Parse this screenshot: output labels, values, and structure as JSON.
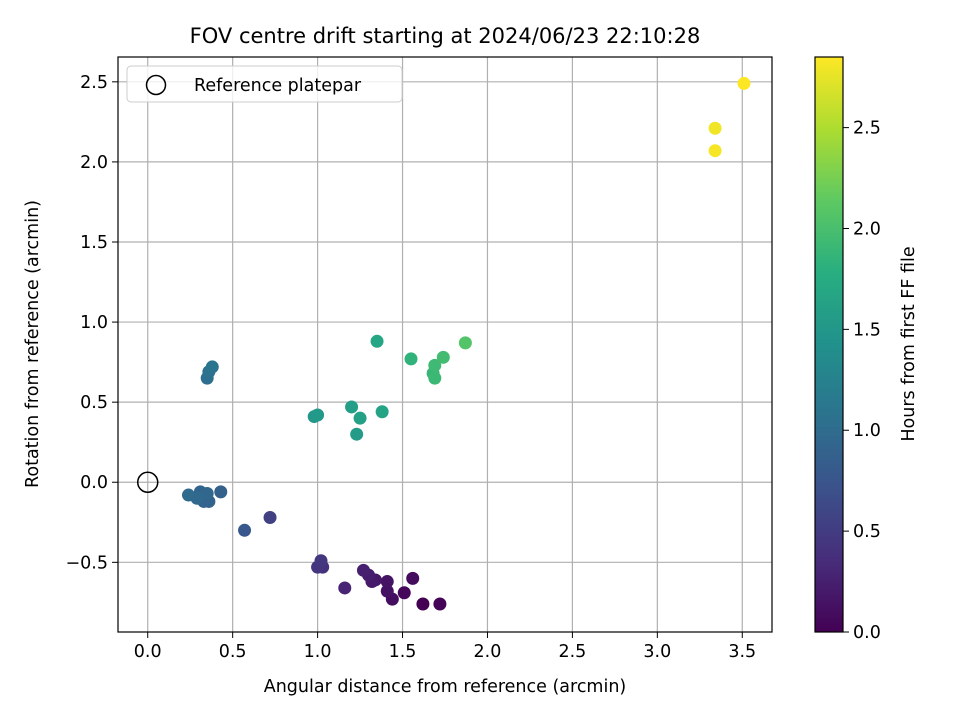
{
  "chart_data": {
    "type": "scatter",
    "title": "FOV centre drift starting at 2024/06/23 22:10:28",
    "xlabel": "Angular distance from reference (arcmin)",
    "ylabel": "Rotation from reference (arcmin)",
    "xlim": [
      -0.175,
      3.675
    ],
    "ylim": [
      -0.935,
      2.655
    ],
    "xticks": [
      0.0,
      0.5,
      1.0,
      1.5,
      2.0,
      2.5,
      3.0,
      3.5
    ],
    "xtick_labels": [
      "0.0",
      "0.5",
      "1.0",
      "1.5",
      "2.0",
      "2.5",
      "3.0",
      "3.5"
    ],
    "yticks": [
      -0.5,
      0.0,
      0.5,
      1.0,
      1.5,
      2.0,
      2.5
    ],
    "ytick_labels": [
      "−0.5",
      "0.0",
      "0.5",
      "1.0",
      "1.5",
      "2.0",
      "2.5"
    ],
    "grid": true,
    "legend": {
      "placement": "top-left",
      "entries": [
        {
          "label": "Reference platepar",
          "marker": "open-circle"
        }
      ]
    },
    "reference_point": {
      "x": 0.0,
      "y": 0.0
    },
    "colorbar": {
      "label": "Hours from first FF file",
      "range": [
        0.0,
        2.85
      ],
      "ticks": [
        0.0,
        0.5,
        1.0,
        1.5,
        2.0,
        2.5
      ],
      "tick_labels": [
        "0.0",
        "0.5",
        "1.0",
        "1.5",
        "2.0",
        "2.5"
      ],
      "colormap": "viridis"
    },
    "points": [
      {
        "x": 1.62,
        "y": -0.76,
        "c": 0.0
      },
      {
        "x": 1.72,
        "y": -0.76,
        "c": 0.02
      },
      {
        "x": 1.51,
        "y": -0.69,
        "c": 0.05
      },
      {
        "x": 1.56,
        "y": -0.6,
        "c": 0.08
      },
      {
        "x": 1.44,
        "y": -0.73,
        "c": 0.1
      },
      {
        "x": 1.41,
        "y": -0.68,
        "c": 0.13
      },
      {
        "x": 1.41,
        "y": -0.62,
        "c": 0.15
      },
      {
        "x": 1.34,
        "y": -0.61,
        "c": 0.18
      },
      {
        "x": 1.32,
        "y": -0.62,
        "c": 0.2
      },
      {
        "x": 1.3,
        "y": -0.58,
        "c": 0.23
      },
      {
        "x": 1.27,
        "y": -0.55,
        "c": 0.25
      },
      {
        "x": 1.16,
        "y": -0.66,
        "c": 0.3
      },
      {
        "x": 1.03,
        "y": -0.53,
        "c": 0.4
      },
      {
        "x": 1.0,
        "y": -0.53,
        "c": 0.43
      },
      {
        "x": 1.02,
        "y": -0.49,
        "c": 0.46
      },
      {
        "x": 0.72,
        "y": -0.22,
        "c": 0.55
      },
      {
        "x": 0.57,
        "y": -0.3,
        "c": 0.78
      },
      {
        "x": 0.43,
        "y": -0.06,
        "c": 0.88
      },
      {
        "x": 0.36,
        "y": -0.12,
        "c": 0.9
      },
      {
        "x": 0.33,
        "y": -0.12,
        "c": 0.92
      },
      {
        "x": 0.31,
        "y": -0.06,
        "c": 0.94
      },
      {
        "x": 0.35,
        "y": -0.07,
        "c": 0.96
      },
      {
        "x": 0.29,
        "y": -0.1,
        "c": 0.98
      },
      {
        "x": 0.24,
        "y": -0.08,
        "c": 1.0
      },
      {
        "x": 0.35,
        "y": 0.65,
        "c": 1.05
      },
      {
        "x": 0.36,
        "y": 0.69,
        "c": 1.08
      },
      {
        "x": 0.38,
        "y": 0.72,
        "c": 1.1
      },
      {
        "x": 0.98,
        "y": 0.41,
        "c": 1.52
      },
      {
        "x": 1.0,
        "y": 0.42,
        "c": 1.54
      },
      {
        "x": 1.23,
        "y": 0.3,
        "c": 1.56
      },
      {
        "x": 1.2,
        "y": 0.47,
        "c": 1.6
      },
      {
        "x": 1.25,
        "y": 0.4,
        "c": 1.62
      },
      {
        "x": 1.38,
        "y": 0.44,
        "c": 1.66
      },
      {
        "x": 1.35,
        "y": 0.88,
        "c": 1.7
      },
      {
        "x": 1.55,
        "y": 0.77,
        "c": 1.85
      },
      {
        "x": 1.68,
        "y": 0.68,
        "c": 1.9
      },
      {
        "x": 1.69,
        "y": 0.65,
        "c": 1.92
      },
      {
        "x": 1.69,
        "y": 0.73,
        "c": 1.94
      },
      {
        "x": 1.74,
        "y": 0.78,
        "c": 1.97
      },
      {
        "x": 1.87,
        "y": 0.87,
        "c": 2.08
      },
      {
        "x": 3.34,
        "y": 2.21,
        "c": 2.8
      },
      {
        "x": 3.34,
        "y": 2.07,
        "c": 2.82
      },
      {
        "x": 3.51,
        "y": 2.49,
        "c": 2.85
      }
    ]
  }
}
